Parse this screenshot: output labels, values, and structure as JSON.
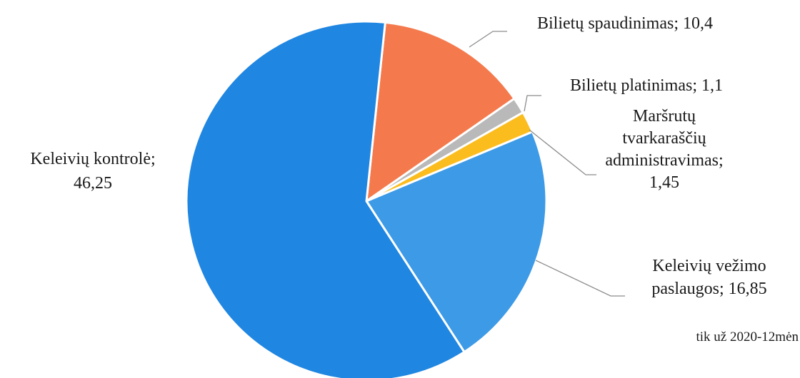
{
  "chart_data": {
    "type": "pie",
    "slices": [
      {
        "label_lines": [
          "Bilietų spaudinimas; 10,4"
        ],
        "value": 10.4,
        "color": "#f47a4d"
      },
      {
        "label_lines": [
          "Bilietų platinimas; 1,1"
        ],
        "value": 1.1,
        "color": "#b9b9b9"
      },
      {
        "label_lines": [
          "Maršrutų",
          "tvarkaraščių",
          "administravimas;",
          "1,45"
        ],
        "value": 1.45,
        "color": "#fbbc1e"
      },
      {
        "label_lines": [
          "Keleivių vežimo",
          "paslaugos; 16,85"
        ],
        "value": 16.85,
        "color": "#3d9ae6"
      },
      {
        "label_lines": [
          "Keleivių kontrolė;",
          "46,25"
        ],
        "value": 46.25,
        "color": "#1f86e1"
      }
    ],
    "annotation": "tik už 2020-12mėn",
    "start_angle_deg": 6,
    "direction": "clockwise"
  }
}
